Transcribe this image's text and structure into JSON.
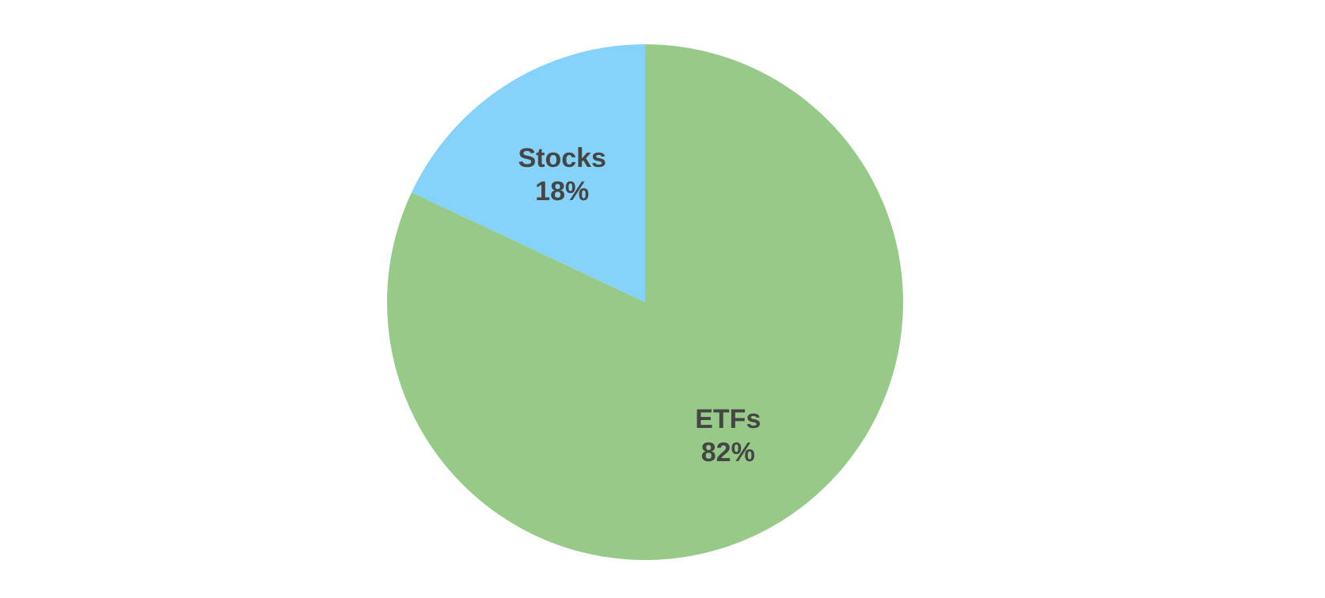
{
  "chart_data": {
    "type": "pie",
    "slices": [
      {
        "label": "ETFs",
        "value": 82,
        "value_label": "82%",
        "color": "#97ca88"
      },
      {
        "label": "Stocks",
        "value": 18,
        "value_label": "18%",
        "color": "#85d3fa"
      }
    ],
    "start": "12 o'clock",
    "direction": "clockwise",
    "legend": "none"
  }
}
